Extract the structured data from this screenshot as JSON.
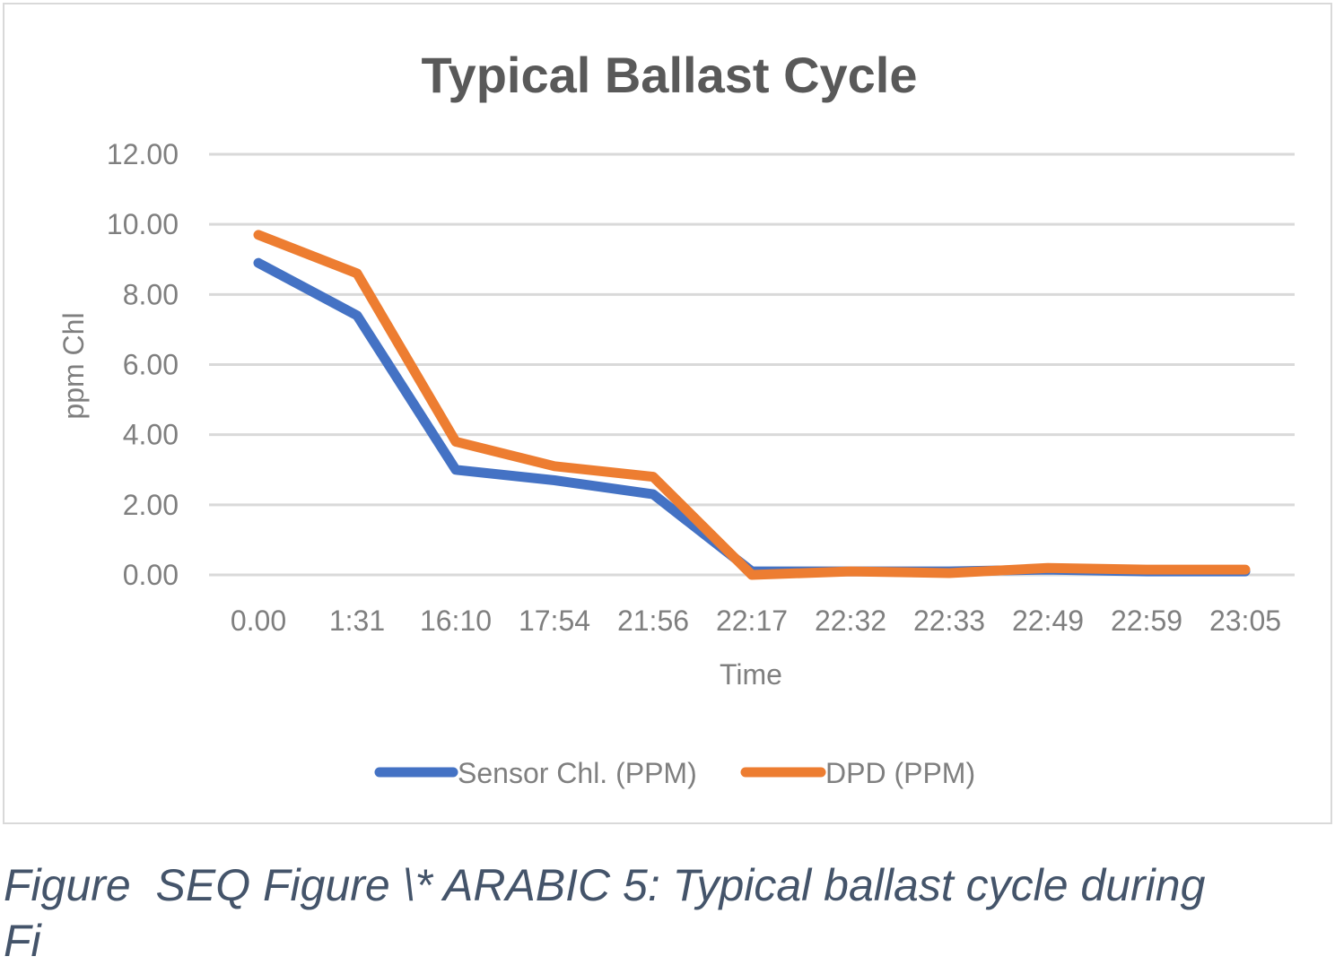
{
  "chart_data": {
    "type": "line",
    "title": "Typical Ballast Cycle",
    "xlabel": "Time",
    "ylabel": "ppm Chl",
    "categories": [
      "0.00",
      "1:31",
      "16:10",
      "17:54",
      "21:56",
      "22:17",
      "22:32",
      "22:33",
      "22:49",
      "22:59",
      "23:05"
    ],
    "series": [
      {
        "name": "Sensor Chl. (PPM)",
        "color": "#4472c4",
        "values": [
          8.9,
          7.4,
          3.0,
          2.7,
          2.3,
          0.1,
          0.1,
          0.1,
          0.15,
          0.1,
          0.1
        ]
      },
      {
        "name": "DPD (PPM)",
        "color": "#ed7d31",
        "values": [
          9.7,
          8.6,
          3.8,
          3.1,
          2.8,
          0.0,
          0.1,
          0.05,
          0.2,
          0.15,
          0.15
        ]
      }
    ],
    "ylim": [
      0,
      12
    ],
    "yticks": [
      "0.00",
      "2.00",
      "4.00",
      "6.00",
      "8.00",
      "10.00",
      "12.00"
    ],
    "grid": true,
    "legend": "bottom",
    "gridline_color": "#d9d9d9"
  },
  "caption": {
    "line1": "Figure  SEQ Figure \\* ARABIC 5: Typical ballast cycle during",
    "line2": "Fi"
  }
}
